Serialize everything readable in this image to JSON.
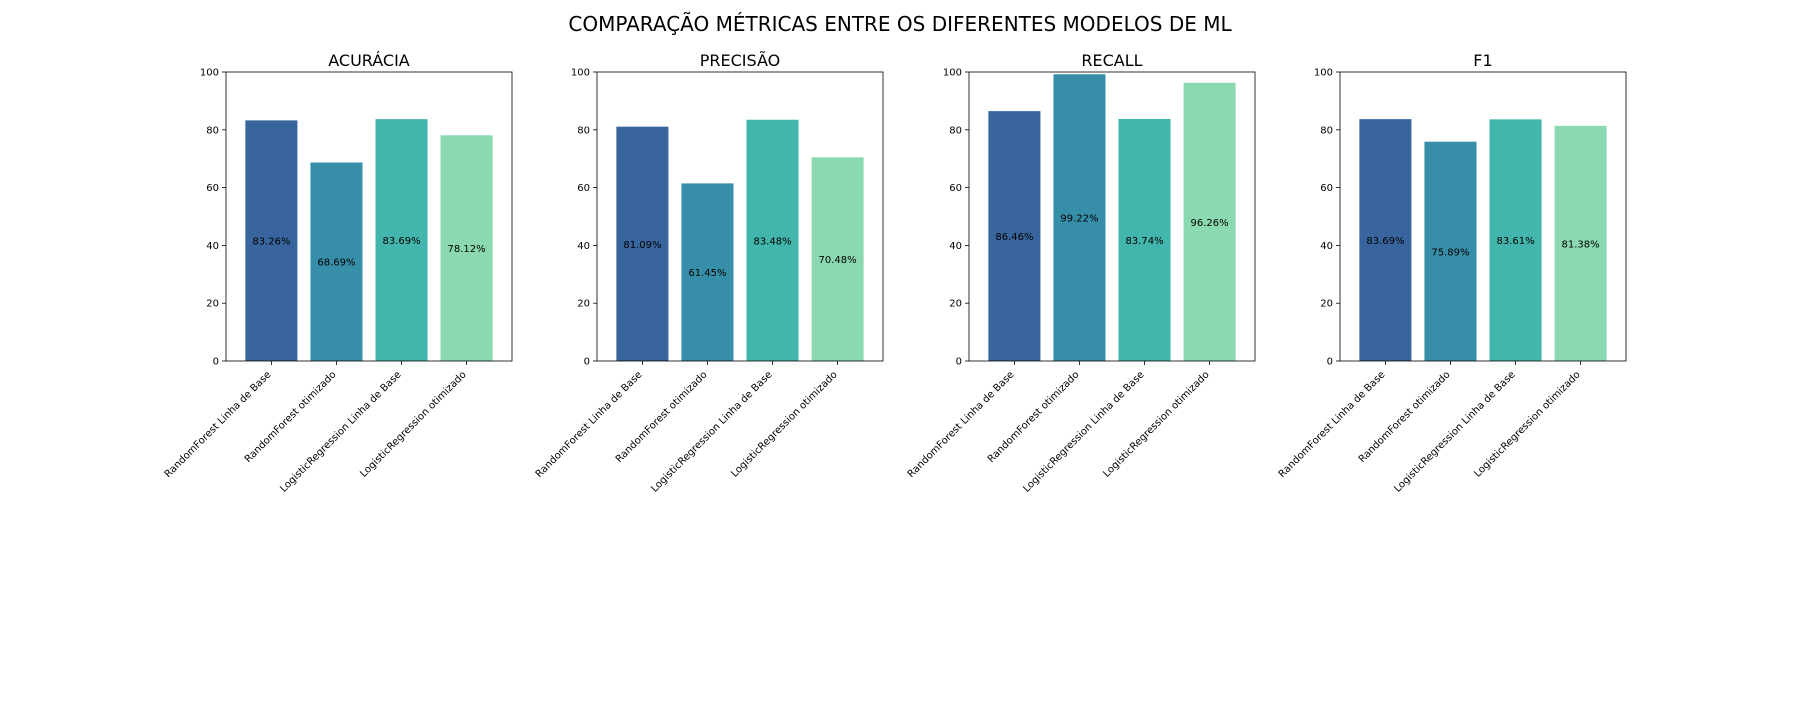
{
  "figure": {
    "title": "COMPARAÇÃO MÉTRICAS ENTRE OS DIFERENTES MODELOS DE ML"
  },
  "chart_data": [
    {
      "type": "bar",
      "title": "ACURÁCIA",
      "categories": [
        "RandomForest Linha de Base",
        "RandomForest otimizado",
        "LogisticRegression Linha de Base",
        "LogisticRegression otimizado"
      ],
      "values": [
        83.26,
        68.69,
        83.69,
        78.12
      ],
      "labels": [
        "83.26%",
        "68.69%",
        "83.69%",
        "78.12%"
      ],
      "ylim": [
        0,
        100
      ],
      "yticks": [
        0,
        20,
        40,
        60,
        80,
        100
      ],
      "xlabel": "",
      "ylabel": "",
      "grid": false,
      "colors": [
        "#38659d",
        "#368ea8",
        "#42b6ad",
        "#8ad9b0"
      ]
    },
    {
      "type": "bar",
      "title": "PRECISÃO",
      "categories": [
        "RandomForest Linha de Base",
        "RandomForest otimizado",
        "LogisticRegression Linha de Base",
        "LogisticRegression otimizado"
      ],
      "values": [
        81.09,
        61.45,
        83.48,
        70.48
      ],
      "labels": [
        "81.09%",
        "61.45%",
        "83.48%",
        "70.48%"
      ],
      "ylim": [
        0,
        100
      ],
      "yticks": [
        0,
        20,
        40,
        60,
        80,
        100
      ],
      "xlabel": "",
      "ylabel": "",
      "grid": false,
      "colors": [
        "#38659d",
        "#368ea8",
        "#42b6ad",
        "#8ad9b0"
      ]
    },
    {
      "type": "bar",
      "title": "RECALL",
      "categories": [
        "RandomForest Linha de Base",
        "RandomForest otimizado",
        "LogisticRegression Linha de Base",
        "LogisticRegression otimizado"
      ],
      "values": [
        86.46,
        99.22,
        83.74,
        96.26
      ],
      "labels": [
        "86.46%",
        "99.22%",
        "83.74%",
        "96.26%"
      ],
      "ylim": [
        0,
        100
      ],
      "yticks": [
        0,
        20,
        40,
        60,
        80,
        100
      ],
      "xlabel": "",
      "ylabel": "",
      "grid": false,
      "colors": [
        "#38659d",
        "#368ea8",
        "#42b6ad",
        "#8ad9b0"
      ]
    },
    {
      "type": "bar",
      "title": "F1",
      "categories": [
        "RandomForest Linha de Base",
        "RandomForest otimizado",
        "LogisticRegression Linha de Base",
        "LogisticRegression otimizado"
      ],
      "values": [
        83.69,
        75.89,
        83.61,
        81.38
      ],
      "labels": [
        "83.69%",
        "75.89%",
        "83.61%",
        "81.38%"
      ],
      "ylim": [
        0,
        100
      ],
      "yticks": [
        0,
        20,
        40,
        60,
        80,
        100
      ],
      "xlabel": "",
      "ylabel": "",
      "grid": false,
      "colors": [
        "#38659d",
        "#368ea8",
        "#42b6ad",
        "#8ad9b0"
      ]
    }
  ]
}
